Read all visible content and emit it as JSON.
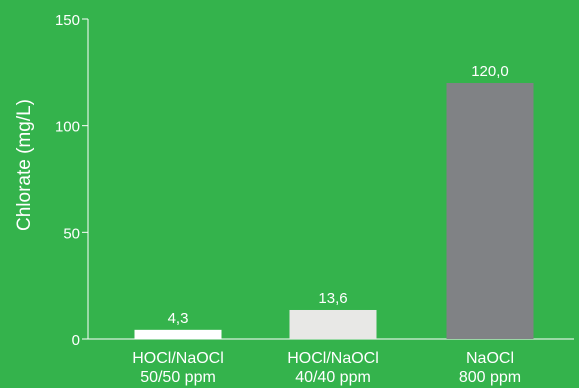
{
  "chart_data": {
    "type": "bar",
    "ylabel": "Chlorate (mg/L)",
    "ylim": [
      0,
      150
    ],
    "yticks": [
      0,
      50,
      100,
      150
    ],
    "categories": [
      [
        "HOCl/NaOCl",
        "50/50 ppm"
      ],
      [
        "HOCl/NaOCl",
        "40/40 ppm"
      ],
      [
        "NaOCl",
        "800 ppm"
      ]
    ],
    "values": [
      4.3,
      13.6,
      120.0
    ],
    "value_labels": [
      "4,3",
      "13,6",
      "120,0"
    ],
    "bar_colors": [
      "#ffffff",
      "#e8e8e6",
      "#808285"
    ],
    "grid": false,
    "legend": "none"
  },
  "colors": {
    "background": "#34b34c",
    "axis": "#ffffff",
    "text": "#ffffff"
  }
}
